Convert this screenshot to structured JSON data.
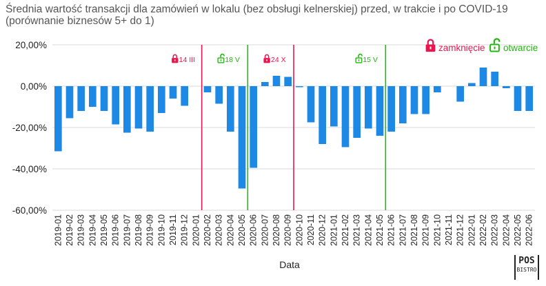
{
  "title_line1": "Średnia wartość transakcji dla zamówień w lokalu (bez obsługi kelnerskiej) przed, w trakcie i po COVID-19",
  "title_line2": "(porównanie biznesów 5+ do 1)",
  "colors": {
    "bar": "#1e88e5",
    "close": "#e8174f",
    "open": "#21b70f",
    "grid": "#d9d9d9",
    "text": "#222222"
  },
  "logo": {
    "line1": "POS",
    "line2": "BISTRO"
  },
  "chart_data": {
    "type": "bar",
    "xlabel": "Data",
    "ylabel": "",
    "ylim": [
      -60,
      20
    ],
    "yticks": [
      20,
      0,
      -20,
      -40,
      -60
    ],
    "ytick_labels": [
      "20,00%",
      "0,00%",
      "-20,00%",
      "-40,00%",
      "-60,00%"
    ],
    "grid": true,
    "categories": [
      "2019-01",
      "2019-02",
      "2019-03",
      "2019-04",
      "2019-05",
      "2019-06",
      "2019-07",
      "2019-08",
      "2019-09",
      "2019-10",
      "2019-11",
      "2019-12",
      "2020-01",
      "2020-02",
      "2020-03",
      "2020-04",
      "2020-05",
      "2020-06",
      "2020-07",
      "2020-08",
      "2020-09",
      "2020-10",
      "2020-11",
      "2020-12",
      "2021-01",
      "2021-02",
      "2021-03",
      "2021-04",
      "2021-05",
      "2021-06",
      "2021-07",
      "2021-08",
      "2021-09",
      "2021-10",
      "2021-11",
      "2021-12",
      "2022-01",
      "2022-02",
      "2022-03",
      "2022-04",
      "2022-05",
      "2022-06"
    ],
    "values": [
      -31.5,
      -15.5,
      -12,
      -10,
      -12,
      -18.5,
      -22.5,
      -20.5,
      -22,
      -13,
      -6,
      -9.5,
      null,
      -3,
      -8.5,
      -22,
      -49.5,
      -39.5,
      2,
      5,
      4.5,
      -0.5,
      -17.5,
      -28,
      -19.5,
      -29.5,
      -25,
      -20.5,
      -24,
      -22,
      -18,
      -13.5,
      -13.5,
      -3,
      null,
      -7.5,
      1.5,
      9,
      7,
      -1,
      -12,
      -12
    ],
    "markers": [
      {
        "type": "close",
        "label": "14 III",
        "between": [
          12,
          13
        ]
      },
      {
        "type": "open",
        "label": "18 V",
        "between": [
          16,
          17
        ]
      },
      {
        "type": "close",
        "label": "24 X",
        "between": [
          20,
          21
        ]
      },
      {
        "type": "open",
        "label": "15 V",
        "between": [
          28,
          29
        ]
      }
    ],
    "legend": {
      "position": "top-right",
      "close_label": "zamknięcie",
      "open_label": "otwarcie"
    }
  }
}
